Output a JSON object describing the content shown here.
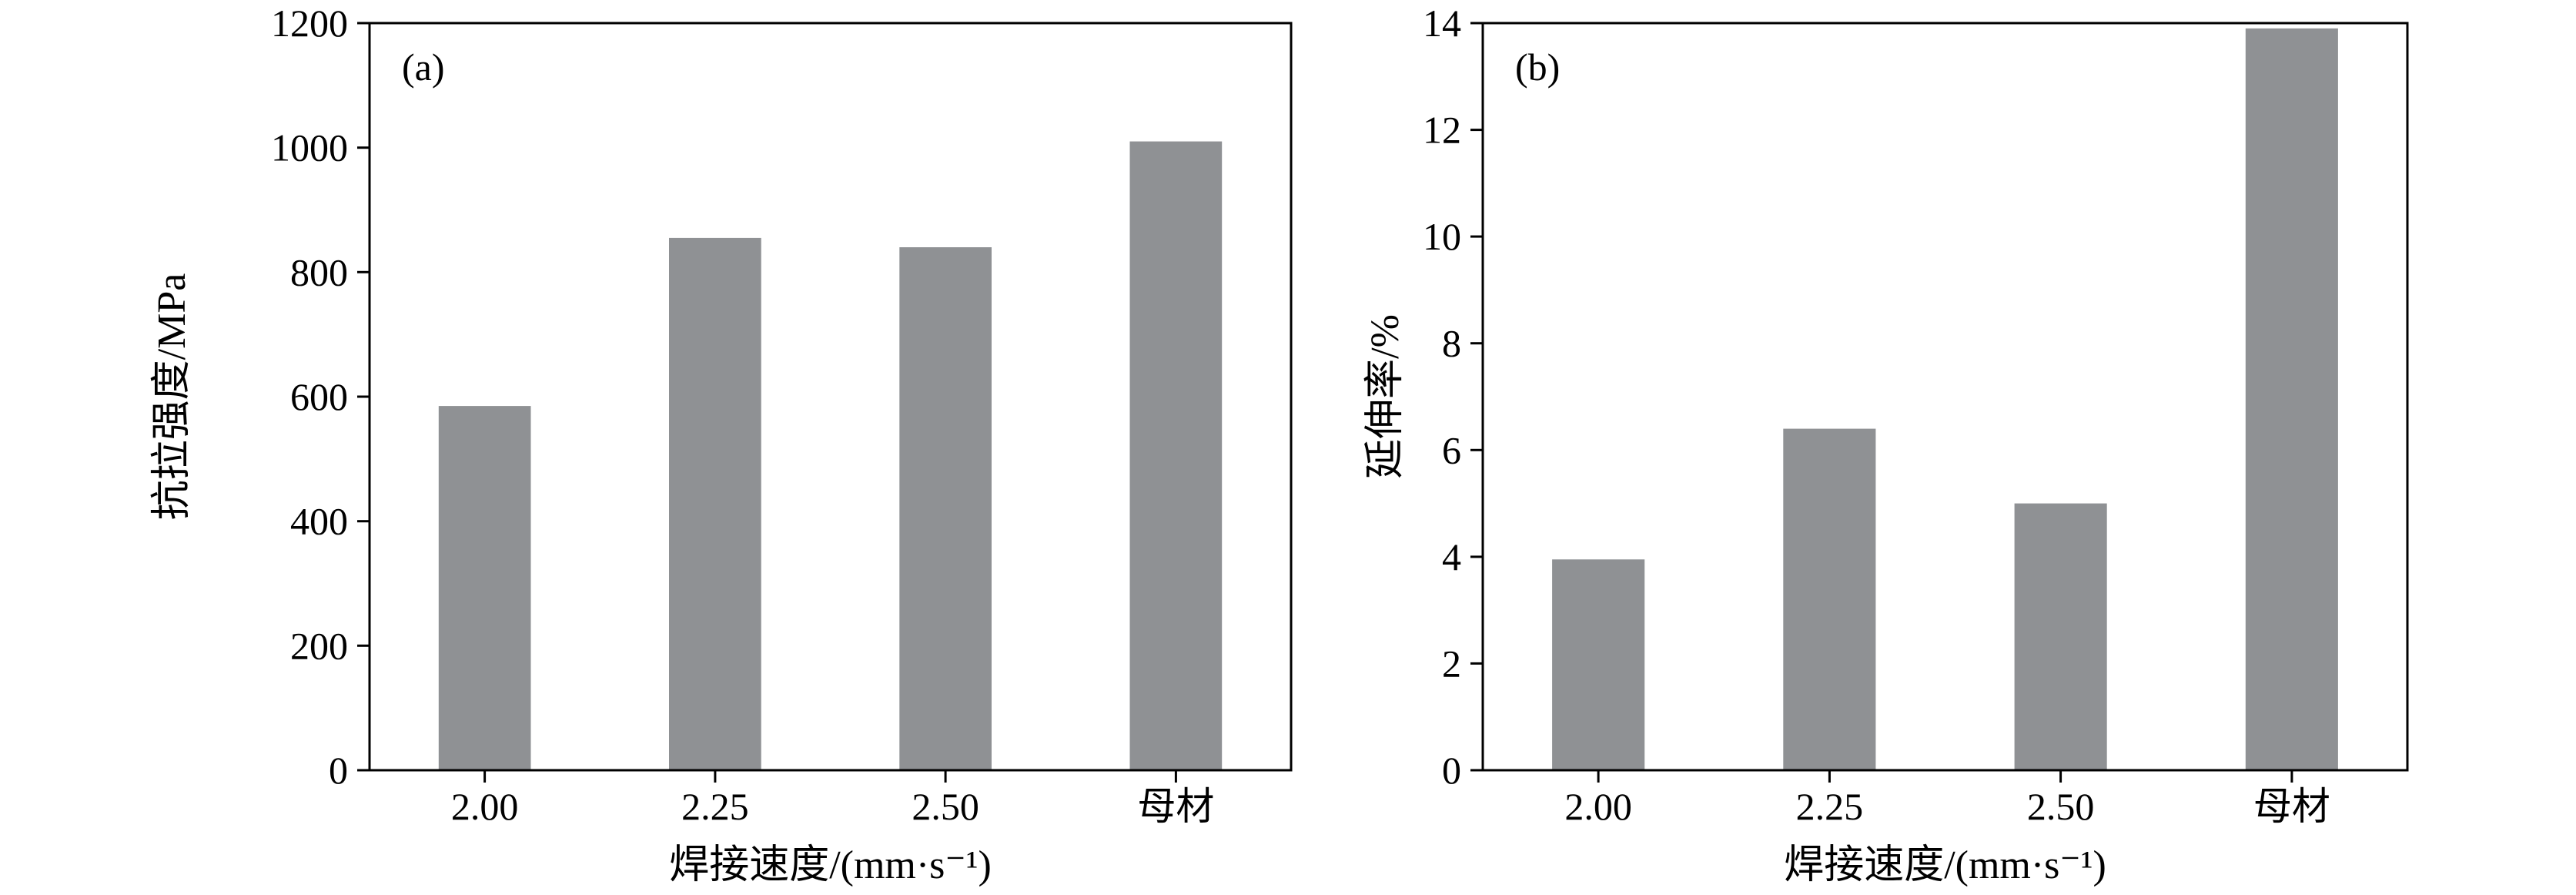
{
  "figure": {
    "background": "#ffffff",
    "bar_color": "#8f9194",
    "axis_color": "#000000"
  },
  "chart_data": [
    {
      "type": "bar",
      "panel_label": "(a)",
      "categories": [
        "2.00",
        "2.25",
        "2.50",
        "母材"
      ],
      "values": [
        585,
        855,
        840,
        1010
      ],
      "title": "",
      "xlabel": "焊接速度/(mm·s⁻¹)",
      "ylabel": "抗拉强度/MPa",
      "ylim": [
        0,
        1200
      ],
      "ytick_step": 200,
      "yticks": [
        0,
        200,
        400,
        600,
        800,
        1000,
        1200
      ],
      "grid": false,
      "legend": "none",
      "bar_color": "#8f9194",
      "axis_color": "#000000"
    },
    {
      "type": "bar",
      "panel_label": "(b)",
      "categories": [
        "2.00",
        "2.25",
        "2.50",
        "母材"
      ],
      "values": [
        3.95,
        6.4,
        5.0,
        13.9
      ],
      "title": "",
      "xlabel": "焊接速度/(mm·s⁻¹)",
      "ylabel": "延伸率/%",
      "ylim": [
        0,
        14
      ],
      "ytick_step": 2,
      "yticks": [
        0,
        2,
        4,
        6,
        8,
        10,
        12,
        14
      ],
      "grid": false,
      "legend": "none",
      "bar_color": "#8f9194",
      "axis_color": "#000000"
    }
  ]
}
